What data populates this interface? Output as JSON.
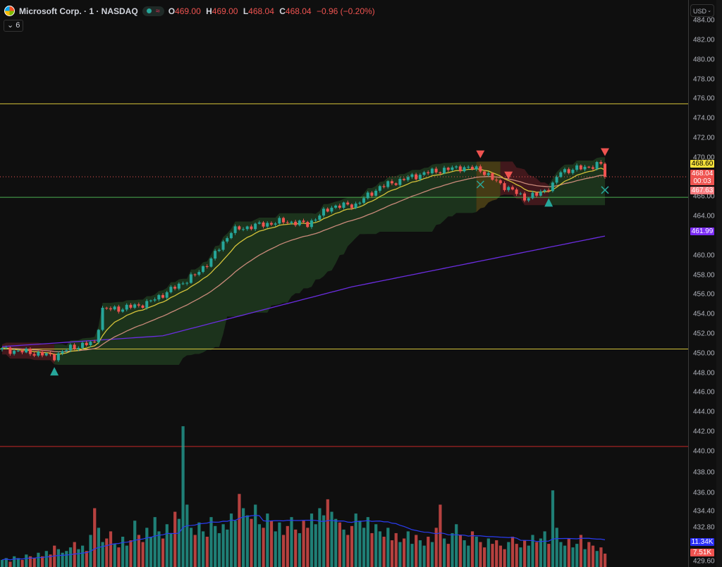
{
  "header": {
    "symbol_title": "Microsoft Corp. · 1 · NASDAQ",
    "approx_icon": "≈",
    "ohlc": [
      {
        "k": "O",
        "v": "469.00"
      },
      {
        "k": "H",
        "v": "469.00"
      },
      {
        "k": "L",
        "v": "468.04"
      },
      {
        "k": "C",
        "v": "468.04"
      }
    ],
    "change": "−0.96 (−0.20%)",
    "indicators_toggle": "6"
  },
  "currency": {
    "label": "USD"
  },
  "axis_ticks": [
    "484.00",
    "482.00",
    "480.00",
    "478.00",
    "476.00",
    "474.00",
    "472.00",
    "470.00",
    "466.00",
    "464.00",
    "460.00",
    "458.00",
    "456.00",
    "454.00",
    "452.00",
    "450.00",
    "448.00",
    "446.00",
    "444.00",
    "442.00",
    "440.00",
    "438.00",
    "436.00",
    "434.40",
    "432.80",
    "429.60"
  ],
  "price_labels": [
    {
      "text": "468.60",
      "bg": "#f5e03a",
      "fg": "#000000"
    },
    {
      "text": "468.04",
      "sub": "00:03",
      "bg": "#ef5350",
      "fg": "#ffffff"
    },
    {
      "text": "467.63",
      "bg": "#f77c80",
      "fg": "#ffffff"
    },
    {
      "text": "461.99",
      "bg": "#7b2cf5",
      "fg": "#ffffff"
    },
    {
      "text": "11.34K",
      "bg": "#2a2ef5",
      "fg": "#ffffff"
    },
    {
      "text": "7.51K",
      "bg": "#ef5350",
      "fg": "#ffffff"
    }
  ],
  "colors": {
    "up": "#26a69a",
    "down": "#ef5350",
    "ema_fast": "#d4c33a",
    "ema_slow": "#c98a7a",
    "ma_long": "#6a2de0",
    "volume_ma": "#2a3cf0",
    "cloud_green": "#1f3a1f",
    "cloud_red": "#4a1a1e",
    "cloud_olive": "#4f4316"
  },
  "chart_data": {
    "type": "candlestick",
    "close_path": [
      [
        0,
        450.4
      ],
      [
        7,
        450.1
      ],
      [
        13,
        449.7
      ],
      [
        17,
        450.6
      ],
      [
        23,
        451.1
      ],
      [
        25,
        454.5
      ],
      [
        30,
        454.6
      ],
      [
        36,
        455.1
      ],
      [
        42,
        456.5
      ],
      [
        48,
        458
      ],
      [
        52,
        459.6
      ],
      [
        57,
        462.5
      ],
      [
        62,
        463
      ],
      [
        70,
        463.5
      ],
      [
        76,
        463.2
      ],
      [
        82,
        465
      ],
      [
        88,
        465.2
      ],
      [
        94,
        467
      ],
      [
        100,
        467.8
      ],
      [
        106,
        468.5
      ],
      [
        114,
        469
      ],
      [
        119,
        468.8
      ],
      [
        122,
        467.8
      ],
      [
        127,
        466.6
      ],
      [
        130,
        465.9
      ],
      [
        133,
        466.2
      ],
      [
        137,
        467.2
      ],
      [
        139,
        468.6
      ],
      [
        145,
        469
      ],
      [
        149,
        469.3
      ],
      [
        150,
        468.04
      ]
    ],
    "long_ma_path": [
      [
        0,
        450.7
      ],
      [
        40,
        451.8
      ],
      [
        87,
        456.8
      ],
      [
        150,
        461.99
      ]
    ],
    "volume_k": [
      4,
      5,
      3,
      6,
      5,
      4,
      7,
      6,
      5,
      8,
      6,
      9,
      7,
      12,
      10,
      8,
      9,
      11,
      14,
      10,
      12,
      9,
      18,
      33,
      22,
      14,
      16,
      20,
      13,
      11,
      17,
      12,
      15,
      26,
      18,
      14,
      22,
      17,
      28,
      20,
      16,
      24,
      19,
      31,
      27,
      79,
      35,
      22,
      18,
      25,
      20,
      17,
      28,
      23,
      19,
      24,
      21,
      30,
      26,
      41,
      33,
      29,
      27,
      35,
      24,
      22,
      30,
      26,
      20,
      25,
      18,
      23,
      28,
      21,
      19,
      26,
      22,
      30,
      24,
      33,
      29,
      38,
      31,
      27,
      25,
      21,
      18,
      23,
      30,
      26,
      22,
      28,
      19,
      24,
      20,
      17,
      22,
      15,
      19,
      14,
      16,
      20,
      13,
      18,
      15,
      12,
      17,
      14,
      22,
      35,
      16,
      13,
      19,
      24,
      18,
      15,
      12,
      20,
      17,
      14,
      11,
      16,
      13,
      15,
      12,
      10,
      14,
      17,
      13,
      11,
      15,
      12,
      18,
      14,
      16,
      20,
      13,
      43,
      22,
      14,
      12,
      16,
      11,
      13,
      18,
      10,
      14,
      12,
      9,
      11,
      7.51
    ],
    "horizontal_levels": [
      {
        "price": 475.5,
        "color": "#d4c33a"
      },
      {
        "price": 465.95,
        "color": "#4caf50"
      },
      {
        "price": 450.45,
        "color": "#d4c33a"
      },
      {
        "price": 440.5,
        "color": "#c62828"
      }
    ],
    "cloud_regimes": [
      {
        "from": 0,
        "to": 13,
        "color": "red"
      },
      {
        "from": 13,
        "to": 118,
        "color": "green"
      },
      {
        "from": 118,
        "to": 124,
        "color": "olive"
      },
      {
        "from": 124,
        "to": 136,
        "color": "red"
      },
      {
        "from": 136,
        "to": 151,
        "color": "green"
      }
    ],
    "signals": [
      {
        "i": 13,
        "type": "buy"
      },
      {
        "i": 119,
        "type": "sell"
      },
      {
        "i": 126,
        "type": "sell"
      },
      {
        "i": 136,
        "type": "buy"
      },
      {
        "i": 150,
        "type": "sell"
      },
      {
        "i": 119,
        "type": "exit"
      },
      {
        "i": 150,
        "type": "exit"
      }
    ],
    "last_price": 468.04
  }
}
